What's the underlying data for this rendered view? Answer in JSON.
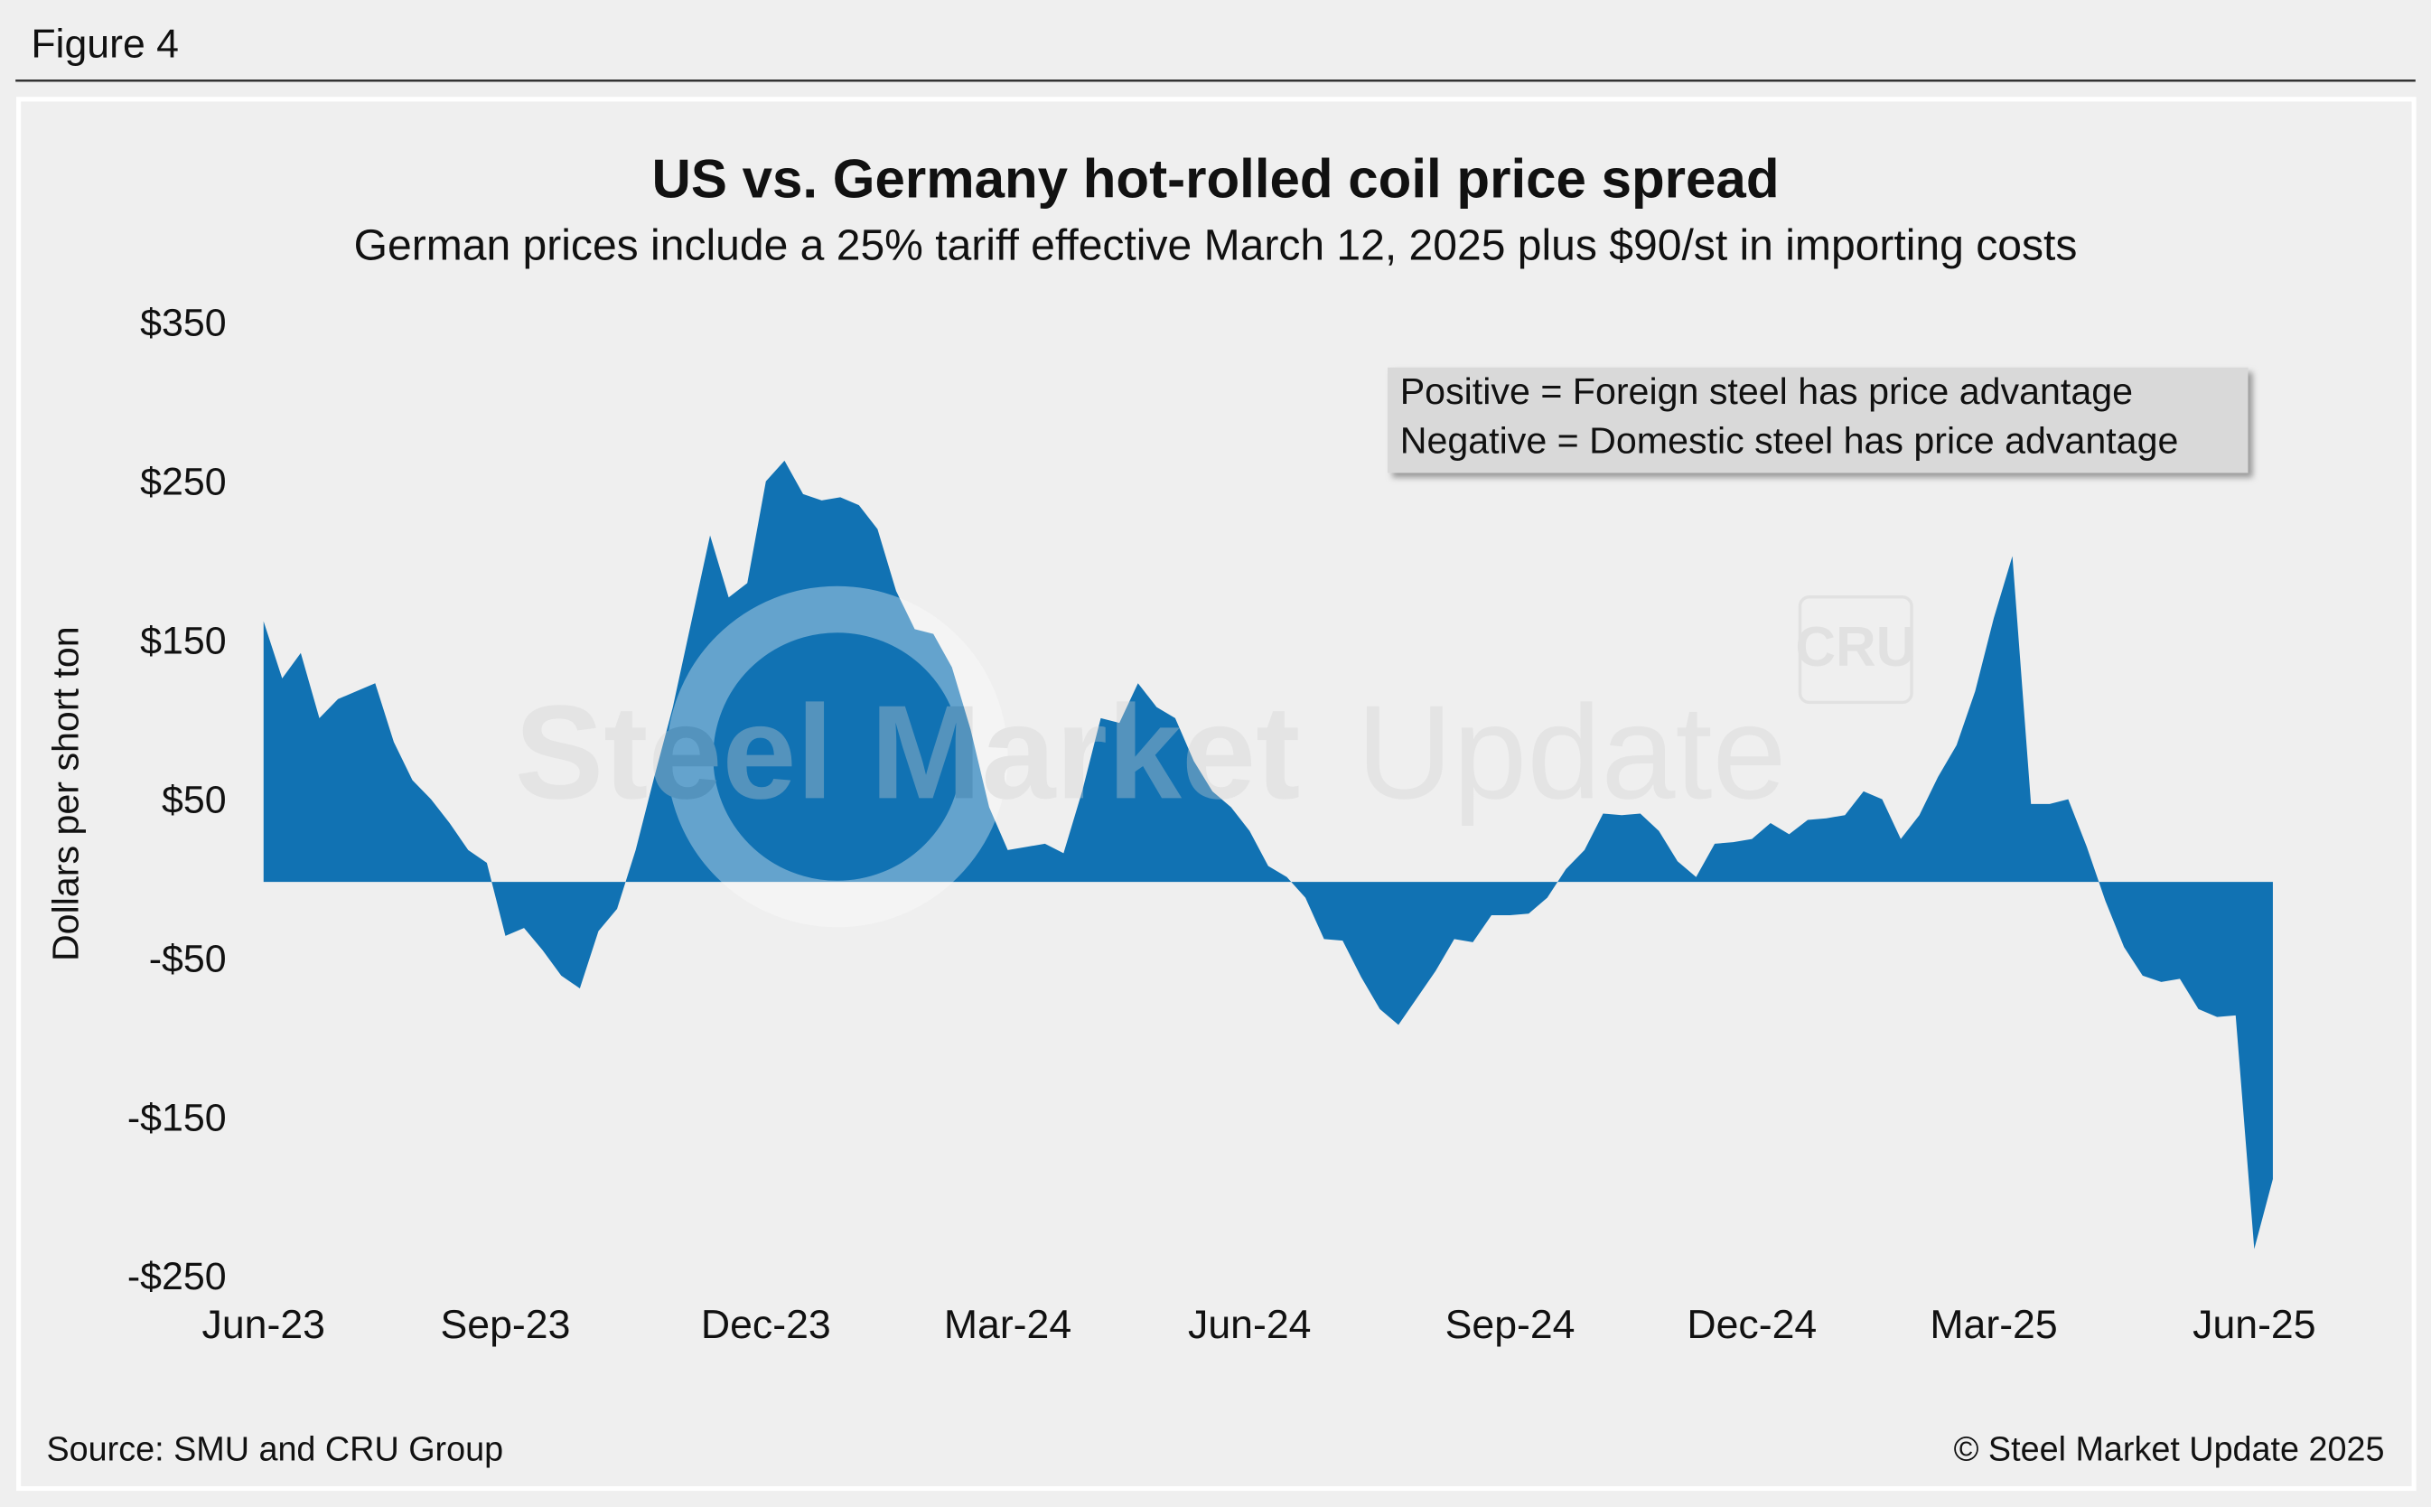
{
  "figure_label": "Figure 4",
  "source": "Source: SMU and CRU Group",
  "copyright": "© Steel Market Update 2025",
  "watermark": {
    "brand_bold": "Steel Market",
    "brand_light": "Update",
    "logo": "CRU"
  },
  "chart_data": {
    "type": "area",
    "title": "US vs. Germany hot-rolled coil price spread",
    "subtitle": "German prices include a 25% tariff effective March 12, 2025 plus $90/st in importing costs",
    "y_axis_label": "Dollars per short ton",
    "annotation": [
      "Positive = Foreign steel has price advantage",
      "Negative = Domestic steel has price advantage"
    ],
    "categories": [
      "Jun-23",
      null,
      null,
      null,
      null,
      null,
      null,
      null,
      null,
      null,
      null,
      null,
      null,
      "Sep-23",
      null,
      null,
      null,
      null,
      null,
      null,
      null,
      null,
      null,
      null,
      null,
      null,
      null,
      "Dec-23",
      null,
      null,
      null,
      null,
      null,
      null,
      null,
      null,
      null,
      null,
      null,
      null,
      "Mar-24",
      null,
      null,
      null,
      null,
      null,
      null,
      null,
      null,
      null,
      null,
      null,
      null,
      "Jun-24",
      null,
      null,
      null,
      null,
      null,
      null,
      null,
      null,
      null,
      null,
      null,
      null,
      null,
      "Sep-24",
      null,
      null,
      null,
      null,
      null,
      null,
      null,
      null,
      null,
      null,
      null,
      null,
      "Dec-24",
      null,
      null,
      null,
      null,
      null,
      null,
      null,
      null,
      null,
      null,
      null,
      null,
      "Mar-25",
      null,
      null,
      null,
      null,
      null,
      null,
      null,
      null,
      null,
      null,
      null,
      null,
      null,
      "Jun-25",
      null
    ],
    "series": [
      {
        "color": "#1172b3",
        "values": [
          164,
          128,
          144,
          103,
          115,
          120,
          125,
          88,
          64,
          52,
          37,
          20,
          12,
          -34,
          -29,
          -43,
          -59,
          -67,
          -31,
          -17,
          20,
          66,
          110,
          164,
          218,
          179,
          188,
          252,
          265,
          244,
          240,
          242,
          237,
          222,
          183,
          159,
          156,
          135,
          96,
          47,
          20,
          22,
          24,
          18,
          57,
          103,
          100,
          125,
          110,
          103,
          76,
          57,
          47,
          32,
          10,
          3,
          -10,
          -36,
          -37,
          -60,
          -80,
          -90,
          -73,
          -56,
          -36,
          -38,
          -21,
          -21,
          -20,
          -10,
          8,
          20,
          43,
          42,
          43,
          32,
          13,
          3,
          24,
          25,
          27,
          37,
          30,
          39,
          40,
          42,
          57,
          52,
          27,
          42,
          66,
          86,
          120,
          166,
          205,
          49,
          49,
          52,
          22,
          -12,
          -41,
          -59,
          -63,
          -61,
          -80,
          -85,
          -84,
          -231,
          -187
        ]
      }
    ],
    "ylim": [
      -250,
      350
    ],
    "yticks": [
      {
        "value": 350,
        "label": "$350"
      },
      {
        "value": 250,
        "label": "$250"
      },
      {
        "value": 150,
        "label": "$150"
      },
      {
        "value": 50,
        "label": "$50"
      },
      {
        "value": -50,
        "label": "-$50"
      },
      {
        "value": -150,
        "label": "-$150"
      },
      {
        "value": -250,
        "label": "-$250"
      }
    ],
    "grid": false
  }
}
